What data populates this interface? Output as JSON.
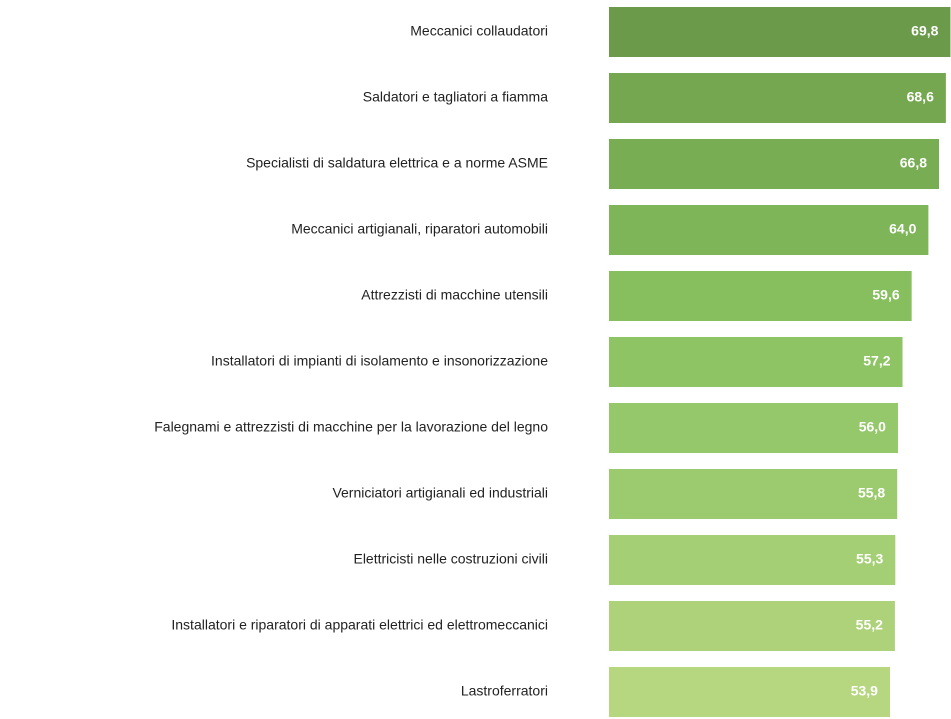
{
  "chart_data": {
    "type": "barh",
    "categories": [
      "Meccanici collaudatori",
      "Saldatori e tagliatori a fiamma",
      "Specialisti di saldatura elettrica e a norme ASME",
      "Meccanici artigianali, riparatori automobili",
      "Attrezzisti di macchine utensili",
      "Installatori di impianti di isolamento e insonorizzazione",
      "Falegnami e attrezzisti di macchine per la lavorazione del legno",
      "Verniciatori artigianali ed industriali",
      "Elettricisti nelle costruzioni civili",
      "Installatori e riparatori di apparati elettrici ed elettromeccanici",
      "Lastroferratori"
    ],
    "values": [
      69.8,
      68.6,
      66.8,
      64.0,
      59.6,
      57.2,
      56.0,
      55.8,
      55.3,
      55.2,
      53.9
    ],
    "value_labels": [
      "69,8",
      "68,6",
      "66,8",
      "64,0",
      "59,6",
      "57,2",
      "56,0",
      "55,8",
      "55,3",
      "55,2",
      "53,9"
    ],
    "colors": [
      "#6b9a4b",
      "#74a750",
      "#78ad54",
      "#7db558",
      "#87bf5f",
      "#8fc465",
      "#95c86a",
      "#9ccb6f",
      "#a4cf74",
      "#aed27a",
      "#b6d680"
    ],
    "xlim": [
      -20,
      71
    ]
  }
}
